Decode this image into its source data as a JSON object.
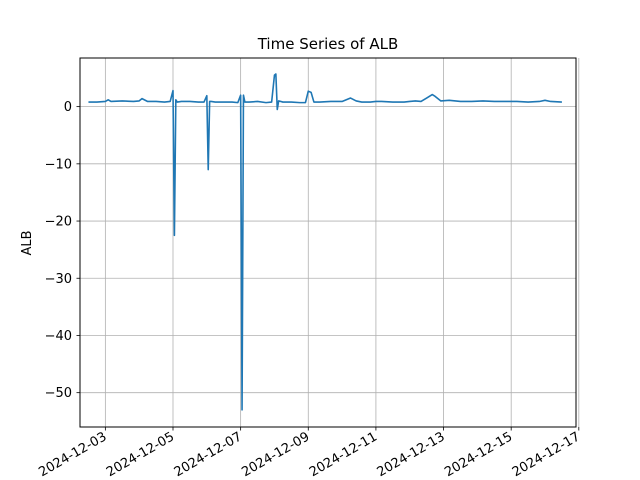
{
  "chart_data": {
    "type": "line",
    "title": "Time Series of ALB",
    "xlabel": "",
    "ylabel": "ALB",
    "xlim": [
      "2024-12-02T06:00",
      "2024-12-16T22:00"
    ],
    "ylim": [
      -56,
      8.5
    ],
    "grid": true,
    "line_color": "#1f77b4",
    "x_ticks": [
      "2024-12-03",
      "2024-12-05",
      "2024-12-07",
      "2024-12-09",
      "2024-12-11",
      "2024-12-13",
      "2024-12-15",
      "2024-12-17"
    ],
    "y_ticks": [
      0,
      -10,
      -20,
      -30,
      -40,
      -50
    ],
    "y_tick_labels": [
      "0",
      "−10",
      "−20",
      "−30",
      "−40",
      "−50"
    ],
    "series": [
      {
        "x": [
          "2024-12-02T12:00",
          "2024-12-02T18:00",
          "2024-12-03T00:00",
          "2024-12-03T02:00",
          "2024-12-03T04:00",
          "2024-12-03T12:00",
          "2024-12-03T20:00",
          "2024-12-04T00:00",
          "2024-12-04T02:00",
          "2024-12-04T06:00",
          "2024-12-04T12:00",
          "2024-12-04T18:00",
          "2024-12-04T22:00",
          "2024-12-05T00:00",
          "2024-12-05T01:00",
          "2024-12-05T02:00",
          "2024-12-05T03:00",
          "2024-12-05T06:00",
          "2024-12-05T12:00",
          "2024-12-05T18:00",
          "2024-12-05T22:00",
          "2024-12-06T00:00",
          "2024-12-06T01:00",
          "2024-12-06T02:00",
          "2024-12-06T03:00",
          "2024-12-06T06:00",
          "2024-12-06T12:00",
          "2024-12-06T18:00",
          "2024-12-06T22:00",
          "2024-12-07T00:00",
          "2024-12-07T01:00",
          "2024-12-07T02:00",
          "2024-12-07T03:00",
          "2024-12-07T06:00",
          "2024-12-07T12:00",
          "2024-12-07T18:00",
          "2024-12-07T22:00",
          "2024-12-08T00:00",
          "2024-12-08T01:00",
          "2024-12-08T02:00",
          "2024-12-08T03:00",
          "2024-12-08T06:00",
          "2024-12-08T12:00",
          "2024-12-08T18:00",
          "2024-12-08T22:00",
          "2024-12-09T00:00",
          "2024-12-09T02:00",
          "2024-12-09T04:00",
          "2024-12-09T08:00",
          "2024-12-09T16:00",
          "2024-12-10T00:00",
          "2024-12-10T06:00",
          "2024-12-10T10:00",
          "2024-12-10T14:00",
          "2024-12-10T20:00",
          "2024-12-11T00:00",
          "2024-12-11T04:00",
          "2024-12-11T12:00",
          "2024-12-11T20:00",
          "2024-12-12T00:00",
          "2024-12-12T04:00",
          "2024-12-12T08:00",
          "2024-12-12T12:00",
          "2024-12-12T16:00",
          "2024-12-12T18:00",
          "2024-12-12T22:00",
          "2024-12-13T04:00",
          "2024-12-13T12:00",
          "2024-12-13T20:00",
          "2024-12-14T04:00",
          "2024-12-14T12:00",
          "2024-12-14T20:00",
          "2024-12-15T04:00",
          "2024-12-15T12:00",
          "2024-12-15T20:00",
          "2024-12-16T00:00",
          "2024-12-16T04:00",
          "2024-12-16T12:00"
        ],
        "y": [
          0.8,
          0.8,
          0.9,
          1.2,
          0.9,
          1.0,
          0.9,
          1.0,
          1.4,
          0.9,
          0.9,
          0.8,
          0.9,
          2.8,
          -22.5,
          1.2,
          0.8,
          0.9,
          0.9,
          0.8,
          0.8,
          1.9,
          -11.0,
          0.9,
          0.9,
          0.8,
          0.8,
          0.8,
          0.7,
          2.0,
          -53.0,
          2.0,
          0.8,
          0.8,
          0.9,
          0.7,
          0.8,
          5.5,
          5.7,
          -0.5,
          1.0,
          0.8,
          0.8,
          0.7,
          0.7,
          2.7,
          2.5,
          0.8,
          0.8,
          0.9,
          0.9,
          1.5,
          1.0,
          0.8,
          0.8,
          0.9,
          0.9,
          0.8,
          0.8,
          0.9,
          1.0,
          0.9,
          1.5,
          2.1,
          1.8,
          1.0,
          1.1,
          0.9,
          0.9,
          1.0,
          0.9,
          0.9,
          0.9,
          0.8,
          0.9,
          1.1,
          0.9,
          0.8
        ]
      }
    ]
  }
}
